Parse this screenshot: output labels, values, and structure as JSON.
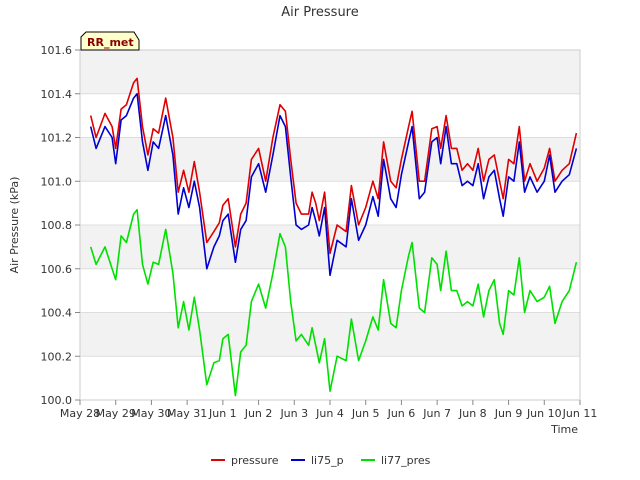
{
  "chart_data": {
    "type": "line",
    "title": "Air Pressure",
    "xlabel": "Time",
    "ylabel": "Air Pressure (kPa)",
    "badge": "RR_met",
    "xlim": [
      0,
      14
    ],
    "ylim": [
      100.0,
      101.6
    ],
    "x_ticks": [
      {
        "label": "May 28",
        "day": 0
      },
      {
        "label": "May 29",
        "day": 1
      },
      {
        "label": "May 30",
        "day": 2
      },
      {
        "label": "May 31",
        "day": 3
      },
      {
        "label": "Jun 1",
        "day": 4
      },
      {
        "label": "Jun 2",
        "day": 5
      },
      {
        "label": "Jun 3",
        "day": 6
      },
      {
        "label": "Jun 4",
        "day": 7
      },
      {
        "label": "Jun 5",
        "day": 8
      },
      {
        "label": "Jun 6",
        "day": 9
      },
      {
        "label": "Jun 7",
        "day": 10
      },
      {
        "label": "Jun 8",
        "day": 11
      },
      {
        "label": "Jun 9",
        "day": 12
      },
      {
        "label": "Jun 10",
        "day": 13
      },
      {
        "label": "Jun 11",
        "day": 14
      }
    ],
    "y_ticks": [
      "100.0",
      "100.2",
      "100.4",
      "100.6",
      "100.8",
      "101.0",
      "101.2",
      "101.4",
      "101.6"
    ],
    "legend_position": "bottom-center",
    "x": [
      0.3,
      0.45,
      0.7,
      0.9,
      1.0,
      1.15,
      1.3,
      1.5,
      1.6,
      1.75,
      1.9,
      2.05,
      2.2,
      2.4,
      2.6,
      2.75,
      2.9,
      3.05,
      3.2,
      3.35,
      3.55,
      3.75,
      3.9,
      4.0,
      4.15,
      4.35,
      4.5,
      4.65,
      4.8,
      5.0,
      5.2,
      5.4,
      5.6,
      5.75,
      5.9,
      6.05,
      6.2,
      6.4,
      6.5,
      6.6,
      6.7,
      6.85,
      7.0,
      7.2,
      7.45,
      7.6,
      7.8,
      8.0,
      8.2,
      8.35,
      8.5,
      8.7,
      8.85,
      9.0,
      9.2,
      9.3,
      9.5,
      9.65,
      9.85,
      10.0,
      10.1,
      10.25,
      10.4,
      10.55,
      10.7,
      10.85,
      11.0,
      11.15,
      11.3,
      11.45,
      11.6,
      11.75,
      11.85,
      12.0,
      12.15,
      12.3,
      12.45,
      12.6,
      12.8,
      13.0,
      13.15,
      13.3,
      13.5,
      13.7,
      13.9
    ],
    "series": [
      {
        "name": "pressure",
        "color": "#e00000",
        "values": [
          101.3,
          101.2,
          101.31,
          101.25,
          101.15,
          101.33,
          101.35,
          101.45,
          101.47,
          101.25,
          101.12,
          101.24,
          101.22,
          101.38,
          101.2,
          100.95,
          101.05,
          100.95,
          101.09,
          100.95,
          100.72,
          100.77,
          100.81,
          100.89,
          100.92,
          100.7,
          100.85,
          100.9,
          101.1,
          101.15,
          101.0,
          101.2,
          101.35,
          101.32,
          101.1,
          100.9,
          100.85,
          100.85,
          100.95,
          100.9,
          100.82,
          100.95,
          100.67,
          100.8,
          100.77,
          100.98,
          100.8,
          100.88,
          101.0,
          100.92,
          101.18,
          101.0,
          100.97,
          101.1,
          101.25,
          101.32,
          101.0,
          101.0,
          101.24,
          101.25,
          101.15,
          101.3,
          101.15,
          101.15,
          101.05,
          101.08,
          101.05,
          101.15,
          101.0,
          101.1,
          101.12,
          101.0,
          100.92,
          101.1,
          101.08,
          101.25,
          101.0,
          101.08,
          101.0,
          101.06,
          101.15,
          101.0,
          101.05,
          101.08,
          101.22
        ]
      },
      {
        "name": "li75_p",
        "color": "#0000d0",
        "values": [
          101.25,
          101.15,
          101.25,
          101.2,
          101.08,
          101.28,
          101.3,
          101.38,
          101.4,
          101.18,
          101.05,
          101.18,
          101.15,
          101.3,
          101.12,
          100.85,
          100.97,
          100.88,
          101.0,
          100.88,
          100.6,
          100.7,
          100.75,
          100.82,
          100.85,
          100.63,
          100.78,
          100.82,
          101.02,
          101.08,
          100.95,
          101.12,
          101.3,
          101.25,
          101.02,
          100.8,
          100.78,
          100.8,
          100.88,
          100.82,
          100.75,
          100.88,
          100.57,
          100.73,
          100.7,
          100.92,
          100.73,
          100.8,
          100.93,
          100.84,
          101.1,
          100.92,
          100.88,
          101.03,
          101.18,
          101.25,
          100.92,
          100.95,
          101.18,
          101.2,
          101.08,
          101.25,
          101.08,
          101.08,
          100.98,
          101.0,
          100.98,
          101.08,
          100.92,
          101.02,
          101.05,
          100.92,
          100.84,
          101.02,
          101.0,
          101.18,
          100.95,
          101.02,
          100.95,
          101.0,
          101.12,
          100.95,
          101.0,
          101.03,
          101.15
        ]
      },
      {
        "name": "li77_pres",
        "color": "#00e000",
        "values": [
          100.7,
          100.62,
          100.7,
          100.6,
          100.55,
          100.75,
          100.72,
          100.85,
          100.87,
          100.62,
          100.53,
          100.63,
          100.62,
          100.78,
          100.58,
          100.33,
          100.45,
          100.32,
          100.47,
          100.32,
          100.07,
          100.17,
          100.18,
          100.28,
          100.3,
          100.02,
          100.22,
          100.25,
          100.45,
          100.53,
          100.42,
          100.58,
          100.76,
          100.7,
          100.45,
          100.27,
          100.3,
          100.25,
          100.33,
          100.25,
          100.17,
          100.28,
          100.04,
          100.2,
          100.18,
          100.37,
          100.18,
          100.27,
          100.38,
          100.32,
          100.55,
          100.35,
          100.33,
          100.5,
          100.66,
          100.72,
          100.42,
          100.4,
          100.65,
          100.62,
          100.5,
          100.68,
          100.5,
          100.5,
          100.43,
          100.45,
          100.43,
          100.53,
          100.38,
          100.5,
          100.55,
          100.35,
          100.3,
          100.5,
          100.48,
          100.65,
          100.4,
          100.5,
          100.45,
          100.47,
          100.52,
          100.35,
          100.45,
          100.5,
          100.63
        ]
      }
    ]
  }
}
